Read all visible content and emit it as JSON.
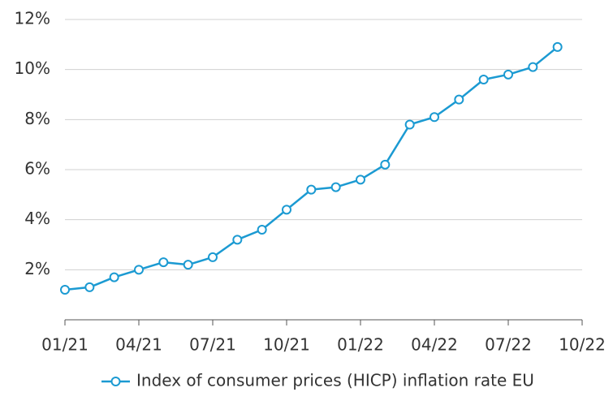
{
  "chart_data": {
    "type": "line",
    "categories": [
      "01/21",
      null,
      null,
      "04/21",
      null,
      null,
      "07/21",
      null,
      null,
      "10/21",
      null,
      null,
      "01/22",
      null,
      null,
      "04/22",
      null,
      null,
      "07/22",
      null,
      null,
      "10/22"
    ],
    "series": [
      {
        "name": "Index of consumer prices (HICP) inflation rate EU",
        "color": "#1b9ad2",
        "values": [
          1.2,
          1.3,
          1.7,
          2.0,
          2.3,
          2.2,
          2.5,
          3.2,
          3.6,
          4.4,
          5.2,
          5.3,
          5.6,
          6.2,
          7.8,
          8.1,
          8.8,
          9.6,
          9.8,
          10.1,
          10.9,
          null
        ]
      }
    ],
    "ylim": [
      0,
      12
    ],
    "yticks": [
      {
        "value": 2,
        "label": "2%"
      },
      {
        "value": 4,
        "label": "4%"
      },
      {
        "value": 6,
        "label": "6%"
      },
      {
        "value": 8,
        "label": "8%"
      },
      {
        "value": 10,
        "label": "10%"
      },
      {
        "value": 12,
        "label": "12%"
      }
    ],
    "grid": true,
    "legend": "bottom"
  }
}
